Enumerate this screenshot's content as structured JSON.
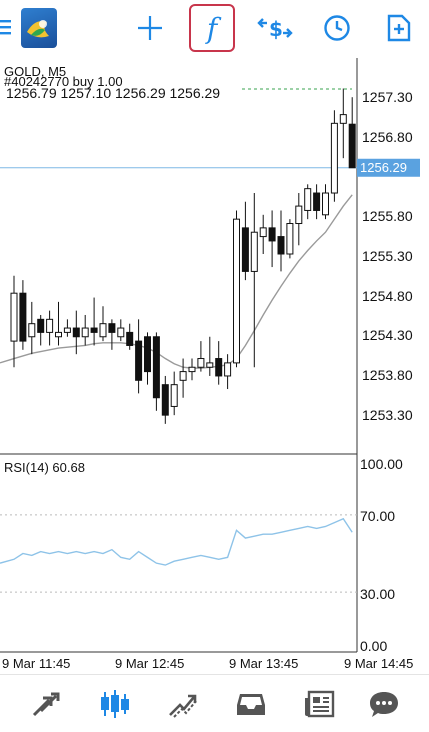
{
  "toolbar": {
    "items": [
      {
        "name": "menu",
        "icon": "menu-icon"
      },
      {
        "name": "app-logo",
        "icon": "metatrader-logo-icon"
      },
      {
        "name": "crosshair",
        "icon": "crosshair-icon"
      },
      {
        "name": "indicators",
        "icon": "function-icon",
        "label": "f",
        "active": true
      },
      {
        "name": "trade",
        "icon": "trade-icon"
      },
      {
        "name": "timeframe",
        "icon": "clock-icon"
      },
      {
        "name": "new-order",
        "icon": "add-document-icon"
      }
    ],
    "accent": "#1e88e5",
    "highlight": "#c8354b"
  },
  "chart": {
    "symbol": "GOLD, M5",
    "order_line": "#40242770 buy 1.00",
    "ohlc": "1256.79 1257.10 1256.29 1256.29",
    "current_price": "1256.29",
    "price_labels": [
      "1257.30",
      "1256.80",
      "1255.80",
      "1255.30",
      "1254.80",
      "1254.30",
      "1253.80",
      "1253.30"
    ],
    "time_labels": [
      "9 Mar 11:45",
      "9 Mar 12:45",
      "9 Mar 13:45",
      "9 Mar 14:45"
    ],
    "indicator": "RSI(14) 60.68",
    "rsi_labels": [
      "100.00",
      "70.00",
      "30.00",
      "0.00"
    ],
    "colors": {
      "price_line": "#7fb8e6",
      "ma": "#9a9a9a",
      "rsi": "#8ec3e8",
      "candle": "#111111",
      "axis": "#333333"
    }
  },
  "chart_data": {
    "type": "candlestick",
    "symbol": "GOLD, M5",
    "candles": [
      {
        "o": 1254.3,
        "h": 1255.05,
        "l": 1254.0,
        "c": 1254.85
      },
      {
        "o": 1254.85,
        "h": 1255.0,
        "l": 1254.2,
        "c": 1254.3
      },
      {
        "o": 1254.35,
        "h": 1254.75,
        "l": 1254.15,
        "c": 1254.5
      },
      {
        "o": 1254.55,
        "h": 1254.6,
        "l": 1254.25,
        "c": 1254.4
      },
      {
        "o": 1254.4,
        "h": 1254.65,
        "l": 1254.25,
        "c": 1254.55
      },
      {
        "o": 1254.35,
        "h": 1254.75,
        "l": 1254.25,
        "c": 1254.4
      },
      {
        "o": 1254.4,
        "h": 1254.55,
        "l": 1254.35,
        "c": 1254.45
      },
      {
        "o": 1254.45,
        "h": 1254.65,
        "l": 1254.15,
        "c": 1254.35
      },
      {
        "o": 1254.35,
        "h": 1254.6,
        "l": 1254.25,
        "c": 1254.45
      },
      {
        "o": 1254.45,
        "h": 1254.8,
        "l": 1254.25,
        "c": 1254.4
      },
      {
        "o": 1254.35,
        "h": 1254.7,
        "l": 1254.3,
        "c": 1254.5
      },
      {
        "o": 1254.5,
        "h": 1254.55,
        "l": 1254.2,
        "c": 1254.4
      },
      {
        "o": 1254.35,
        "h": 1254.55,
        "l": 1254.3,
        "c": 1254.45
      },
      {
        "o": 1254.4,
        "h": 1254.5,
        "l": 1254.2,
        "c": 1254.25
      },
      {
        "o": 1254.3,
        "h": 1254.55,
        "l": 1253.7,
        "c": 1253.85
      },
      {
        "o": 1254.35,
        "h": 1254.4,
        "l": 1253.8,
        "c": 1253.95
      },
      {
        "o": 1254.35,
        "h": 1254.4,
        "l": 1253.5,
        "c": 1253.65
      },
      {
        "o": 1253.8,
        "h": 1253.9,
        "l": 1253.35,
        "c": 1253.45
      },
      {
        "o": 1253.55,
        "h": 1253.95,
        "l": 1253.45,
        "c": 1253.8
      },
      {
        "o": 1253.85,
        "h": 1254.1,
        "l": 1253.65,
        "c": 1253.95
      },
      {
        "o": 1253.95,
        "h": 1254.1,
        "l": 1253.85,
        "c": 1254.0
      },
      {
        "o": 1254.0,
        "h": 1254.3,
        "l": 1253.95,
        "c": 1254.1
      },
      {
        "o": 1254.0,
        "h": 1254.35,
        "l": 1253.9,
        "c": 1254.05
      },
      {
        "o": 1254.1,
        "h": 1254.3,
        "l": 1253.8,
        "c": 1253.9
      },
      {
        "o": 1253.9,
        "h": 1254.15,
        "l": 1253.75,
        "c": 1254.05
      },
      {
        "o": 1254.05,
        "h": 1255.8,
        "l": 1254.0,
        "c": 1255.7
      },
      {
        "o": 1255.6,
        "h": 1255.9,
        "l": 1255.0,
        "c": 1255.1
      },
      {
        "o": 1255.1,
        "h": 1256.0,
        "l": 1254.0,
        "c": 1255.55
      },
      {
        "o": 1255.5,
        "h": 1255.75,
        "l": 1255.3,
        "c": 1255.6
      },
      {
        "o": 1255.6,
        "h": 1255.8,
        "l": 1255.15,
        "c": 1255.45
      },
      {
        "o": 1255.5,
        "h": 1255.8,
        "l": 1255.1,
        "c": 1255.3
      },
      {
        "o": 1255.3,
        "h": 1255.7,
        "l": 1255.25,
        "c": 1255.65
      },
      {
        "o": 1255.65,
        "h": 1256.0,
        "l": 1255.4,
        "c": 1255.85
      },
      {
        "o": 1255.8,
        "h": 1256.1,
        "l": 1255.7,
        "c": 1256.05
      },
      {
        "o": 1256.0,
        "h": 1256.1,
        "l": 1255.7,
        "c": 1255.8
      },
      {
        "o": 1255.75,
        "h": 1256.1,
        "l": 1255.7,
        "c": 1256.0
      },
      {
        "o": 1256.0,
        "h": 1256.95,
        "l": 1255.9,
        "c": 1256.8
      },
      {
        "o": 1256.8,
        "h": 1257.2,
        "l": 1256.4,
        "c": 1256.9
      },
      {
        "o": 1256.79,
        "h": 1257.1,
        "l": 1256.29,
        "c": 1256.29
      }
    ],
    "moving_average": [
      1254.1,
      1254.13,
      1254.16,
      1254.18,
      1254.2,
      1254.22,
      1254.23,
      1254.24,
      1254.25,
      1254.27,
      1254.28,
      1254.28,
      1254.28,
      1254.27,
      1254.25,
      1254.22,
      1254.17,
      1254.1,
      1254.04,
      1254.0,
      1253.99,
      1253.99,
      1254.0,
      1254.01,
      1254.03,
      1254.1,
      1254.25,
      1254.42,
      1254.6,
      1254.77,
      1254.93,
      1255.08,
      1255.22,
      1255.34,
      1255.45,
      1255.55,
      1255.7,
      1255.85,
      1255.98
    ],
    "rsi": [
      47,
      50,
      49,
      51,
      50,
      51,
      50,
      51,
      50,
      51,
      50,
      52,
      48,
      47,
      51,
      48,
      45,
      44,
      46,
      47,
      48,
      49,
      48,
      47,
      48,
      62,
      58,
      59,
      60,
      60,
      61,
      62,
      63,
      64,
      63,
      64,
      66,
      68,
      61
    ],
    "y_range": [
      1253.05,
      1257.55
    ],
    "rsi_range": [
      0,
      100
    ],
    "x_ticks": [
      "9 Mar 11:45",
      "9 Mar 12:45",
      "9 Mar 13:45",
      "9 Mar 14:45"
    ],
    "grid": false
  },
  "bottom_nav": {
    "items": [
      {
        "name": "quotes",
        "icon": "quotes-arrows-icon"
      },
      {
        "name": "chart",
        "icon": "candlestick-chart-icon",
        "active": true
      },
      {
        "name": "trade",
        "icon": "trade-trend-icon"
      },
      {
        "name": "history",
        "icon": "inbox-tray-icon"
      },
      {
        "name": "news",
        "icon": "news-icon"
      },
      {
        "name": "messages",
        "icon": "chat-bubble-icon"
      }
    ]
  }
}
